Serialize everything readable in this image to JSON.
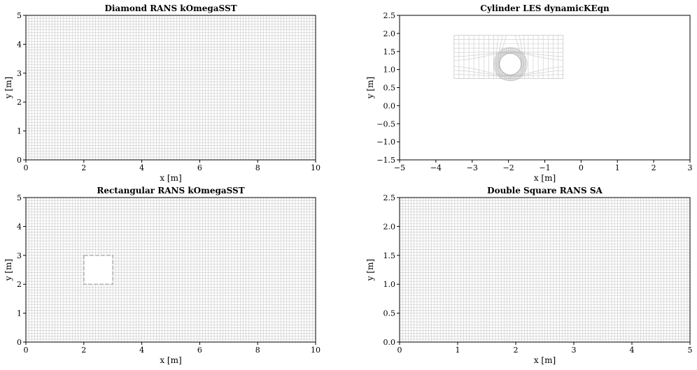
{
  "chart_data": [
    {
      "type": "mesh",
      "title": "Diamond RANS kOmegaSST",
      "xlabel": "x [m]",
      "ylabel": "y [m]",
      "xlim": [
        0,
        10
      ],
      "ylim": [
        0,
        5
      ],
      "xticks": [
        "0",
        "2",
        "4",
        "6",
        "8",
        "10"
      ],
      "yticks": [
        "0",
        "1",
        "2",
        "3",
        "4",
        "5"
      ],
      "grid_color": "#c8c8c8",
      "mesh": {
        "kind": "uniform",
        "x_lines": 100,
        "y_lines": 50
      }
    },
    {
      "type": "mesh",
      "title": "Cylinder LES dynamicKEqn",
      "xlabel": "x [m]",
      "ylabel": "y [m]",
      "xlim": [
        -5,
        3
      ],
      "ylim": [
        -1.5,
        2.5
      ],
      "xticks": [
        "−5",
        "−4",
        "−3",
        "−2",
        "−1",
        "0",
        "1",
        "2",
        "3"
      ],
      "yticks": [
        "−1.5",
        "−1.0",
        "−0.5",
        "0.0",
        "0.5",
        "1.0",
        "1.5",
        "2.0",
        "2.5"
      ],
      "grid_color": "#c8c8c8",
      "mesh": {
        "kind": "o-grid",
        "domain_x": [
          -3.5,
          -0.5
        ],
        "domain_y": [
          0.75,
          1.95
        ],
        "cylinder_center": [
          -1.95,
          1.15
        ],
        "cylinder_radius": 0.3
      }
    },
    {
      "type": "mesh",
      "title": "Rectangular RANS kOmegaSST",
      "xlabel": "x [m]",
      "ylabel": "y [m]",
      "xlim": [
        0,
        10
      ],
      "ylim": [
        0,
        5
      ],
      "xticks": [
        "0",
        "2",
        "4",
        "6",
        "8",
        "10"
      ],
      "yticks": [
        "0",
        "1",
        "2",
        "3",
        "4",
        "5"
      ],
      "grid_color": "#c8c8c8",
      "mesh": {
        "kind": "uniform-with-hole",
        "x_lines": 100,
        "y_lines": 50,
        "hole_x": [
          2,
          3
        ],
        "hole_y": [
          2,
          3
        ]
      }
    },
    {
      "type": "mesh",
      "title": "Double Square RANS SA",
      "xlabel": "x [m]",
      "ylabel": "y [m]",
      "xlim": [
        0,
        5
      ],
      "ylim": [
        0,
        2.5
      ],
      "xticks": [
        "0",
        "1",
        "2",
        "3",
        "4",
        "5"
      ],
      "yticks": [
        "0.0",
        "0.5",
        "1.0",
        "1.5",
        "2.0",
        "2.5"
      ],
      "grid_color": "#c8c8c8",
      "mesh": {
        "kind": "uniform",
        "x_lines": 100,
        "y_lines": 50
      }
    }
  ]
}
